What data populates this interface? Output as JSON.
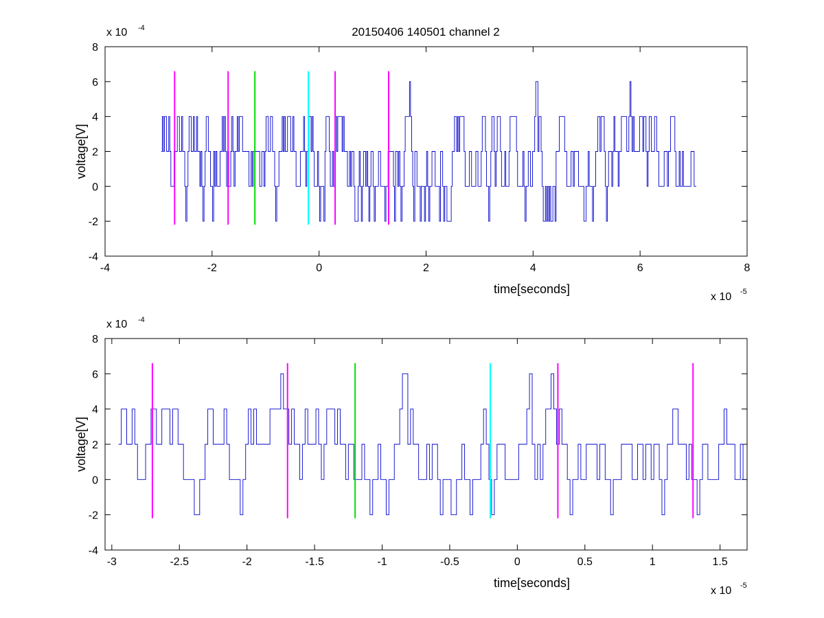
{
  "title": "20150406 140501 channel 2",
  "chart_data": [
    {
      "type": "line",
      "xlabel": "time[seconds]",
      "ylabel": "voltage[V]",
      "x_exponent_label": "x 10",
      "x_exponent_power": "-5",
      "y_exponent_label": "x 10",
      "y_exponent_power": "-4",
      "xlim": [
        -4,
        8
      ],
      "ylim": [
        -4,
        8
      ],
      "xticks": [
        -4,
        -2,
        0,
        2,
        4,
        6,
        8
      ],
      "xtick_labels": [
        "-4",
        "-2",
        "0",
        "2",
        "4",
        "6",
        "8"
      ],
      "yticks": [
        -4,
        -2,
        0,
        2,
        4,
        6,
        8
      ],
      "ytick_labels": [
        "-4",
        "-2",
        "0",
        "2",
        "4",
        "6",
        "8"
      ],
      "signal": {
        "color": "#0000cc",
        "x_start": -2.95,
        "x_end": 7.05,
        "sample_step": 0.02,
        "levels": [
          -2,
          0,
          2,
          4,
          6
        ],
        "baseline": 2
      },
      "markers": [
        {
          "x": -2.7,
          "color": "#ff00ff",
          "ymin": -2.2,
          "ymax": 6.6
        },
        {
          "x": -1.7,
          "color": "#ff00ff",
          "ymin": -2.2,
          "ymax": 6.6
        },
        {
          "x": -1.2,
          "color": "#00dd00",
          "ymin": -2.2,
          "ymax": 6.6
        },
        {
          "x": -0.2,
          "color": "#00ffff",
          "ymin": -2.2,
          "ymax": 6.6
        },
        {
          "x": 0.3,
          "color": "#ff00ff",
          "ymin": -2.2,
          "ymax": 6.6
        },
        {
          "x": 1.3,
          "color": "#ff00ff",
          "ymin": -2.2,
          "ymax": 6.6
        }
      ]
    },
    {
      "type": "line",
      "xlabel": "time[seconds]",
      "ylabel": "voltage[V]",
      "x_exponent_label": "x 10",
      "x_exponent_power": "-5",
      "y_exponent_label": "x 10",
      "y_exponent_power": "-4",
      "xlim": [
        -3.05,
        1.7
      ],
      "ylim": [
        -4,
        8
      ],
      "xticks": [
        -3,
        -2.5,
        -2,
        -1.5,
        -1,
        -0.5,
        0,
        0.5,
        1,
        1.5
      ],
      "xtick_labels": [
        "-3",
        "-2.5",
        "-2",
        "-1.5",
        "-1",
        "-0.5",
        "0",
        "0.5",
        "1",
        "1.5"
      ],
      "yticks": [
        -4,
        -2,
        0,
        2,
        4,
        6,
        8
      ],
      "ytick_labels": [
        "-4",
        "-2",
        "0",
        "2",
        "4",
        "6",
        "8"
      ],
      "signal": {
        "color": "#0000cc",
        "x_start": -2.95,
        "x_end": 1.7,
        "sample_step": 0.02,
        "levels": [
          -2,
          0,
          2,
          4,
          6
        ],
        "baseline": 2
      },
      "markers": [
        {
          "x": -2.7,
          "color": "#ff00ff",
          "ymin": -2.2,
          "ymax": 6.6
        },
        {
          "x": -1.7,
          "color": "#ff00ff",
          "ymin": -2.2,
          "ymax": 6.6
        },
        {
          "x": -1.2,
          "color": "#00dd00",
          "ymin": -2.2,
          "ymax": 6.6
        },
        {
          "x": -0.2,
          "color": "#00ffff",
          "ymin": -2.2,
          "ymax": 6.6
        },
        {
          "x": 0.3,
          "color": "#ff00ff",
          "ymin": -2.2,
          "ymax": 6.6
        },
        {
          "x": 1.3,
          "color": "#ff00ff",
          "ymin": -2.2,
          "ymax": 6.6
        }
      ]
    }
  ]
}
